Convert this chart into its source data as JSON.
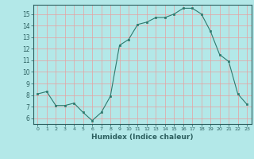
{
  "x": [
    0,
    1,
    2,
    3,
    4,
    5,
    6,
    7,
    8,
    9,
    10,
    11,
    12,
    13,
    14,
    15,
    16,
    17,
    18,
    19,
    20,
    21,
    22,
    23
  ],
  "y": [
    8.1,
    8.3,
    7.1,
    7.1,
    7.3,
    6.5,
    5.8,
    6.5,
    7.9,
    12.3,
    12.8,
    14.1,
    14.3,
    14.7,
    14.7,
    15.0,
    15.5,
    15.5,
    15.0,
    13.5,
    11.5,
    10.9,
    8.1,
    7.2
  ],
  "xlabel": "Humidex (Indice chaleur)",
  "ylim": [
    5.5,
    15.8
  ],
  "xlim": [
    -0.5,
    23.5
  ],
  "yticks": [
    6,
    7,
    8,
    9,
    10,
    11,
    12,
    13,
    14,
    15
  ],
  "xticks": [
    0,
    1,
    2,
    3,
    4,
    5,
    6,
    7,
    8,
    9,
    10,
    11,
    12,
    13,
    14,
    15,
    16,
    17,
    18,
    19,
    20,
    21,
    22,
    23
  ],
  "line_color": "#2d7a6e",
  "marker_color": "#2d7a6e",
  "bg_color": "#b3e8e8",
  "grid_color": "#e8a0a0",
  "axes_color": "#2d6060",
  "label_color": "#2d6060"
}
